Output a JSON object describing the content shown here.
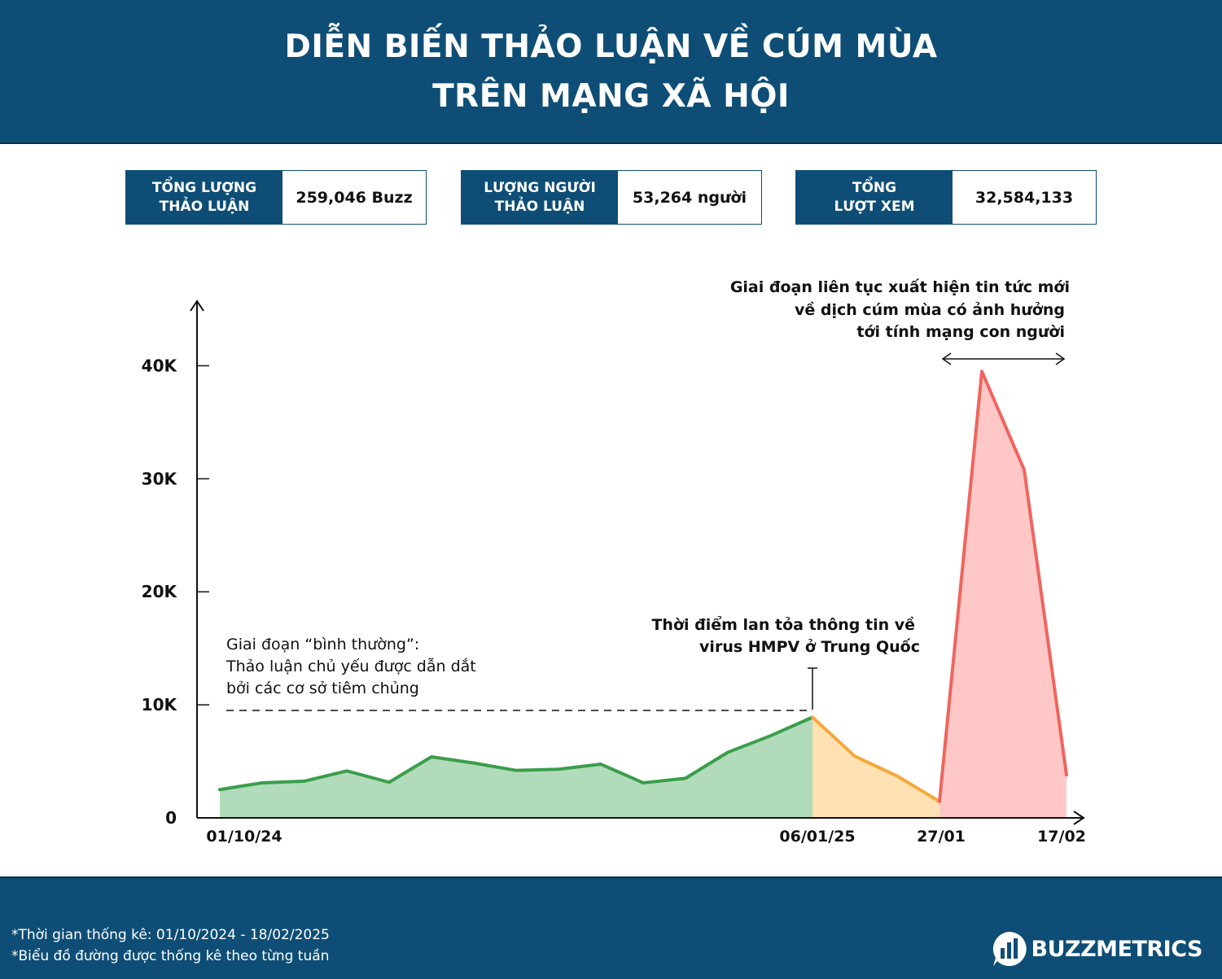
{
  "header": {
    "title_line1": "DIỄN BIẾN THẢO LUẬN VỀ CÚM MÙA",
    "title_line2": "TRÊN MẠNG XÃ HỘI"
  },
  "stats": [
    {
      "label_line1": "TỔNG LƯỢNG",
      "label_line2": "THẢO LUẬN",
      "value": "259,046 Buzz"
    },
    {
      "label_line1": "LƯỢNG NGƯỜI",
      "label_line2": "THẢO LUẬN",
      "value": "53,264 người"
    },
    {
      "label_line1": "TỔNG",
      "label_line2": "LƯỢT XEM",
      "value": "32,584,133"
    }
  ],
  "chart_data": {
    "type": "area",
    "title": "",
    "xlabel": "",
    "ylabel": "",
    "ylim": [
      0,
      45000
    ],
    "yticks": [
      0,
      10000,
      20000,
      30000,
      40000
    ],
    "ytick_labels": [
      "0",
      "10K",
      "20K",
      "30K",
      "40K"
    ],
    "xtick_labels": [
      "01/10/24",
      "06/01/25",
      "27/01",
      "17/02"
    ],
    "xtick_week_index": [
      0,
      14,
      17,
      20
    ],
    "grid": false,
    "legend": "none",
    "colors": {
      "normal_line": "#3a9e4a",
      "normal_fill": "#b2dbbb",
      "hmpv_line": "#f5a83a",
      "hmpv_fill": "#ffe2b4",
      "news_line": "#f0645f",
      "news_fill": "#ffc8c6"
    },
    "series": [
      {
        "week_index": [
          0,
          1,
          2,
          3,
          4,
          5,
          6,
          7,
          8,
          9,
          10,
          11,
          12,
          13,
          14
        ],
        "values": [
          2500,
          3100,
          3250,
          4150,
          3150,
          5400,
          4850,
          4200,
          4300,
          4750,
          3100,
          3500,
          5800,
          7250,
          8900
        ]
      },
      {
        "week_index": [
          14,
          15,
          16,
          17
        ],
        "values": [
          8900,
          5450,
          3700,
          1450
        ]
      },
      {
        "week_index": [
          17,
          18,
          19,
          20
        ],
        "values": [
          1450,
          39500,
          30800,
          3800
        ]
      }
    ],
    "annotations": [
      {
        "lines": [
          "Giai đoạn “bình thường”:",
          "Thảo luận chủ yếu được dẫn dắt",
          "bởi các cơ sở tiêm chủng"
        ]
      },
      {
        "lines": [
          "Thời điểm lan tỏa thông tin về",
          "virus HMPV ở Trung Quốc"
        ]
      },
      {
        "lines": [
          "Giai đoạn liên tục xuất hiện tin tức mới",
          "về dịch cúm mùa có ảnh hưởng",
          "tới tính mạng con người"
        ]
      }
    ]
  },
  "footer": {
    "note1": "*Thời gian thống kê: 01/10/2024 - 18/02/2025",
    "note2": "*Biểu đồ đường được thống kê theo từng tuần",
    "brand": "BUZZMETRICS",
    "brand_icon": "bar-chart-bubble-icon"
  }
}
